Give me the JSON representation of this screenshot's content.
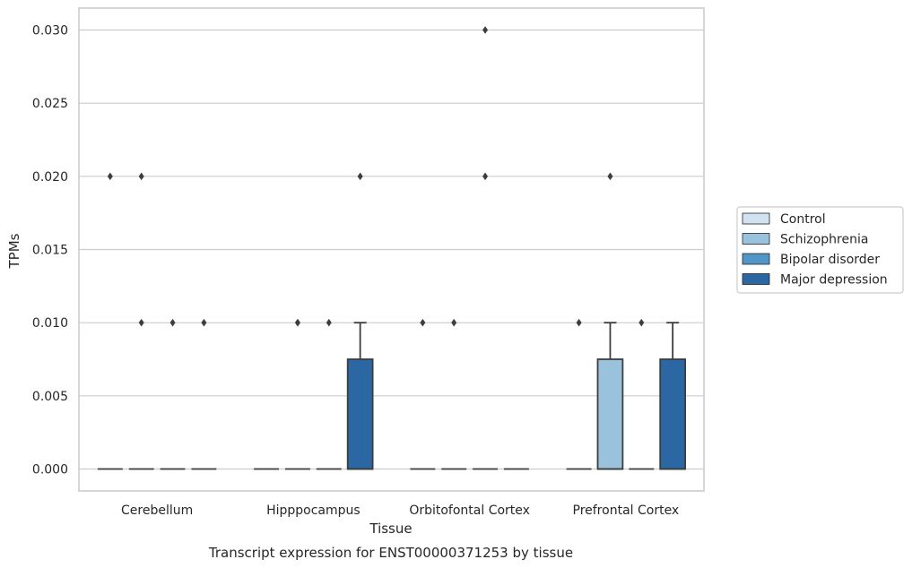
{
  "chart_data": {
    "type": "box",
    "title": "",
    "caption": "Transcript expression for ENST00000371253 by tissue",
    "xlabel": "Tissue",
    "ylabel": "TPMs",
    "ylim": [
      -0.0015,
      0.0315
    ],
    "yticks": [
      "0.000",
      "0.005",
      "0.010",
      "0.015",
      "0.020",
      "0.025",
      "0.030"
    ],
    "grid": true,
    "legend_position": "right",
    "categories": [
      "Cerebellum",
      "Hipppocampus",
      "Orbitofontal Cortex",
      "Prefrontal Cortex"
    ],
    "series": [
      {
        "name": "Control",
        "color": "#d1e2f1",
        "boxes": [
          {
            "q1": 0,
            "median": 0,
            "q3": 0,
            "whislo": 0,
            "whishi": 0,
            "fliers": [
              0.02
            ]
          },
          {
            "q1": 0,
            "median": 0,
            "q3": 0,
            "whislo": 0,
            "whishi": 0,
            "fliers": []
          },
          {
            "q1": 0,
            "median": 0,
            "q3": 0,
            "whislo": 0,
            "whishi": 0,
            "fliers": [
              0.01
            ]
          },
          {
            "q1": 0,
            "median": 0,
            "q3": 0,
            "whislo": 0,
            "whishi": 0,
            "fliers": [
              0.01
            ]
          }
        ]
      },
      {
        "name": "Schizophrenia",
        "color": "#9ac2dc",
        "boxes": [
          {
            "q1": 0,
            "median": 0,
            "q3": 0,
            "whislo": 0,
            "whishi": 0,
            "fliers": [
              0.01,
              0.02
            ]
          },
          {
            "q1": 0,
            "median": 0,
            "q3": 0,
            "whislo": 0,
            "whishi": 0,
            "fliers": [
              0.01,
              0.01
            ]
          },
          {
            "q1": 0,
            "median": 0,
            "q3": 0,
            "whislo": 0,
            "whishi": 0,
            "fliers": [
              0.01
            ]
          },
          {
            "q1": 0,
            "median": 0,
            "q3": 0.0075,
            "whislo": 0,
            "whishi": 0.01,
            "fliers": [
              0.02
            ]
          }
        ]
      },
      {
        "name": "Bipolar disorder",
        "color": "#5196c7",
        "boxes": [
          {
            "q1": 0,
            "median": 0,
            "q3": 0,
            "whislo": 0,
            "whishi": 0,
            "fliers": [
              0.01
            ]
          },
          {
            "q1": 0,
            "median": 0,
            "q3": 0,
            "whislo": 0,
            "whishi": 0,
            "fliers": [
              0.01
            ]
          },
          {
            "q1": 0,
            "median": 0,
            "q3": 0,
            "whislo": 0,
            "whishi": 0,
            "fliers": [
              0.02,
              0.03
            ]
          },
          {
            "q1": 0,
            "median": 0,
            "q3": 0,
            "whislo": 0,
            "whishi": 0,
            "fliers": [
              0.01
            ]
          }
        ]
      },
      {
        "name": "Major depression",
        "color": "#2b67a3",
        "boxes": [
          {
            "q1": 0,
            "median": 0,
            "q3": 0,
            "whislo": 0,
            "whishi": 0,
            "fliers": [
              0.01
            ]
          },
          {
            "q1": 0,
            "median": 0,
            "q3": 0.0075,
            "whislo": 0,
            "whishi": 0.01,
            "fliers": [
              0.02
            ]
          },
          {
            "q1": 0,
            "median": 0,
            "q3": 0,
            "whislo": 0,
            "whishi": 0,
            "fliers": []
          },
          {
            "q1": 0,
            "median": 0,
            "q3": 0.0075,
            "whislo": 0,
            "whishi": 0.01,
            "fliers": []
          }
        ]
      }
    ]
  }
}
